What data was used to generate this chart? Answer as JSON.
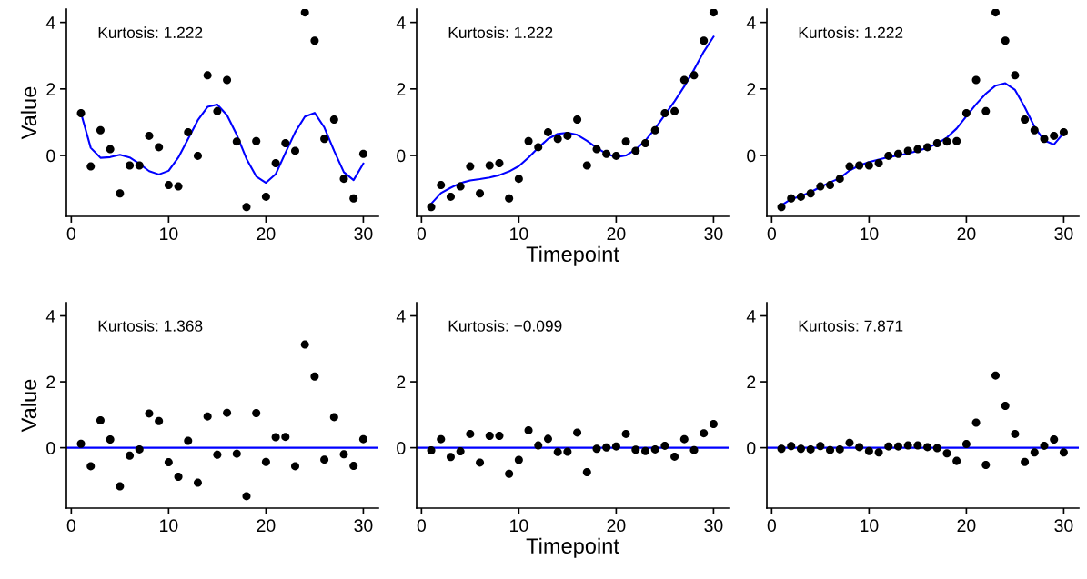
{
  "chart_data": [
    {
      "type": "scatter",
      "ylabel": "Value",
      "annotations": [
        "Kurtosis: 1.222"
      ],
      "xlim": [
        -0.5,
        31.55
      ],
      "ylim": [
        -1.83,
        4.4
      ],
      "xticks": [
        0,
        10,
        20,
        30
      ],
      "yticks": [
        0,
        2,
        4
      ],
      "grid": false,
      "marker": "circle",
      "x": [
        1,
        2,
        3,
        4,
        5,
        6,
        7,
        8,
        9,
        10,
        11,
        12,
        13,
        14,
        15,
        16,
        17,
        18,
        19,
        20,
        21,
        22,
        23,
        24,
        25,
        26,
        27,
        28,
        29,
        30
      ],
      "series": [
        {
          "color": "#000000",
          "values": [
            1.27,
            -0.33,
            0.76,
            0.19,
            -1.14,
            -0.3,
            -0.3,
            0.59,
            0.25,
            -0.89,
            -0.93,
            0.7,
            -0.01,
            2.41,
            1.33,
            2.27,
            0.42,
            -1.55,
            0.43,
            -1.24,
            -0.23,
            0.37,
            0.14,
            4.3,
            3.45,
            0.5,
            1.08,
            -0.7,
            -1.29,
            0.05
          ]
        },
        {
          "type": "line",
          "color": "#0000ff",
          "marker": "none",
          "line_style": "solid",
          "values": [
            1.27,
            0.23,
            -0.07,
            -0.05,
            0.02,
            -0.06,
            -0.25,
            -0.47,
            -0.57,
            -0.46,
            -0.06,
            0.5,
            1.06,
            1.46,
            1.53,
            1.21,
            0.62,
            -0.1,
            -0.63,
            -0.82,
            -0.56,
            0.08,
            0.7,
            1.17,
            1.28,
            0.84,
            0.14,
            -0.5,
            -0.74,
            -0.24
          ]
        }
      ]
    },
    {
      "type": "scatter",
      "xlabel": "Timepoint",
      "annotations": [
        "Kurtosis: 1.222"
      ],
      "xlim": [
        -0.5,
        31.55
      ],
      "ylim": [
        -1.83,
        4.4
      ],
      "xticks": [
        0,
        10,
        20,
        30
      ],
      "yticks": [
        0,
        2,
        4
      ],
      "grid": false,
      "marker": "circle",
      "x": [
        1,
        2,
        3,
        4,
        5,
        6,
        7,
        8,
        9,
        10,
        11,
        12,
        13,
        14,
        15,
        16,
        17,
        18,
        19,
        20,
        21,
        22,
        23,
        24,
        25,
        26,
        27,
        28,
        29,
        30
      ],
      "series": [
        {
          "color": "#000000",
          "values": [
            -1.55,
            -0.89,
            -1.24,
            -0.93,
            -0.33,
            -1.14,
            -0.3,
            -0.23,
            -1.29,
            -0.7,
            0.43,
            0.25,
            0.7,
            0.5,
            0.59,
            1.08,
            -0.3,
            0.19,
            0.05,
            -0.01,
            0.42,
            0.14,
            0.37,
            0.76,
            1.27,
            1.33,
            2.27,
            2.41,
            3.45,
            4.3
          ]
        },
        {
          "type": "line",
          "color": "#0000ff",
          "marker": "none",
          "line_style": "solid",
          "values": [
            -1.45,
            -1.13,
            -0.97,
            -0.83,
            -0.75,
            -0.71,
            -0.66,
            -0.59,
            -0.48,
            -0.32,
            -0.06,
            0.23,
            0.5,
            0.65,
            0.68,
            0.62,
            0.44,
            0.23,
            0.05,
            -0.05,
            0.0,
            0.18,
            0.45,
            0.81,
            1.22,
            1.63,
            2.08,
            2.58,
            3.12,
            3.57
          ]
        }
      ]
    },
    {
      "type": "scatter",
      "annotations": [
        "Kurtosis: 1.222"
      ],
      "xlim": [
        -0.5,
        31.55
      ],
      "ylim": [
        -1.83,
        4.4
      ],
      "xticks": [
        0,
        10,
        20,
        30
      ],
      "yticks": [
        0,
        2,
        4
      ],
      "grid": false,
      "marker": "circle",
      "x": [
        1,
        2,
        3,
        4,
        5,
        6,
        7,
        8,
        9,
        10,
        11,
        12,
        13,
        14,
        15,
        16,
        17,
        18,
        19,
        20,
        21,
        22,
        23,
        24,
        25,
        26,
        27,
        28,
        29,
        30
      ],
      "series": [
        {
          "color": "#000000",
          "values": [
            -1.55,
            -1.29,
            -1.24,
            -1.14,
            -0.93,
            -0.89,
            -0.7,
            -0.33,
            -0.3,
            -0.3,
            -0.23,
            -0.01,
            0.05,
            0.14,
            0.19,
            0.25,
            0.37,
            0.42,
            0.43,
            1.27,
            2.27,
            1.33,
            4.3,
            3.45,
            2.41,
            1.08,
            0.76,
            0.5,
            0.59,
            0.7
          ]
        },
        {
          "type": "line",
          "color": "#0000ff",
          "marker": "none",
          "line_style": "solid",
          "values": [
            -1.5,
            -1.31,
            -1.22,
            -1.1,
            -0.95,
            -0.81,
            -0.68,
            -0.45,
            -0.3,
            -0.2,
            -0.12,
            -0.05,
            0.0,
            0.06,
            0.14,
            0.23,
            0.36,
            0.54,
            0.81,
            1.18,
            1.54,
            1.86,
            2.1,
            2.17,
            1.97,
            1.45,
            0.86,
            0.45,
            0.33,
            0.68
          ]
        }
      ]
    },
    {
      "type": "scatter",
      "ylabel": "Value",
      "annotations": [
        "Kurtosis: 1.368"
      ],
      "xlim": [
        -0.5,
        31.55
      ],
      "ylim": [
        -1.83,
        4.4
      ],
      "xticks": [
        0,
        10,
        20,
        30
      ],
      "yticks": [
        0,
        2,
        4
      ],
      "grid": false,
      "marker": "circle",
      "x": [
        1,
        2,
        3,
        4,
        5,
        6,
        7,
        8,
        9,
        10,
        11,
        12,
        13,
        14,
        15,
        16,
        17,
        18,
        19,
        20,
        21,
        22,
        23,
        24,
        25,
        26,
        27,
        28,
        29,
        30
      ],
      "ref_lines": [
        {
          "axis": "y",
          "value": 0,
          "color": "#0000ff",
          "line_style": "solid"
        }
      ],
      "series": [
        {
          "color": "#000000",
          "values": [
            0.12,
            -0.56,
            0.83,
            0.25,
            -1.17,
            -0.24,
            -0.05,
            1.04,
            0.81,
            -0.44,
            -0.88,
            0.21,
            -1.06,
            0.95,
            -0.21,
            1.06,
            -0.18,
            -1.47,
            1.05,
            -0.43,
            0.32,
            0.33,
            -0.56,
            3.13,
            2.16,
            -0.36,
            0.93,
            -0.2,
            -0.55,
            0.26
          ]
        }
      ]
    },
    {
      "type": "scatter",
      "xlabel": "Timepoint",
      "annotations": [
        "Kurtosis: −0.099"
      ],
      "xlim": [
        -0.5,
        31.55
      ],
      "ylim": [
        -1.83,
        4.4
      ],
      "xticks": [
        0,
        10,
        20,
        30
      ],
      "yticks": [
        0,
        2,
        4
      ],
      "grid": false,
      "marker": "circle",
      "x": [
        1,
        2,
        3,
        4,
        5,
        6,
        7,
        8,
        9,
        10,
        11,
        12,
        13,
        14,
        15,
        16,
        17,
        18,
        19,
        20,
        21,
        22,
        23,
        24,
        25,
        26,
        27,
        28,
        29,
        30
      ],
      "ref_lines": [
        {
          "axis": "y",
          "value": 0,
          "color": "#0000ff",
          "line_style": "solid"
        }
      ],
      "series": [
        {
          "color": "#000000",
          "values": [
            -0.08,
            0.26,
            -0.28,
            -0.11,
            0.42,
            -0.45,
            0.36,
            0.36,
            -0.79,
            -0.37,
            0.53,
            0.07,
            0.27,
            -0.13,
            -0.12,
            0.46,
            -0.74,
            -0.03,
            0.01,
            0.04,
            0.42,
            -0.06,
            -0.1,
            -0.05,
            0.06,
            -0.27,
            0.26,
            -0.07,
            0.44,
            0.72
          ]
        }
      ]
    },
    {
      "type": "scatter",
      "annotations": [
        "Kurtosis: 7.871"
      ],
      "xlim": [
        -0.5,
        31.55
      ],
      "ylim": [
        -1.83,
        4.4
      ],
      "xticks": [
        0,
        10,
        20,
        30
      ],
      "yticks": [
        0,
        2,
        4
      ],
      "grid": false,
      "marker": "circle",
      "x": [
        1,
        2,
        3,
        4,
        5,
        6,
        7,
        8,
        9,
        10,
        11,
        12,
        13,
        14,
        15,
        16,
        17,
        18,
        19,
        20,
        21,
        22,
        23,
        24,
        25,
        26,
        27,
        28,
        29,
        30
      ],
      "ref_lines": [
        {
          "axis": "y",
          "value": 0,
          "color": "#0000ff",
          "line_style": "solid"
        }
      ],
      "series": [
        {
          "color": "#000000",
          "values": [
            -0.03,
            0.05,
            -0.03,
            -0.05,
            0.05,
            -0.07,
            -0.05,
            0.15,
            0.02,
            -0.1,
            -0.14,
            0.04,
            0.04,
            0.07,
            0.07,
            0.02,
            -0.01,
            -0.17,
            -0.4,
            0.11,
            0.76,
            -0.52,
            2.19,
            1.27,
            0.42,
            -0.43,
            -0.14,
            0.06,
            0.25,
            -0.14
          ]
        }
      ]
    }
  ]
}
